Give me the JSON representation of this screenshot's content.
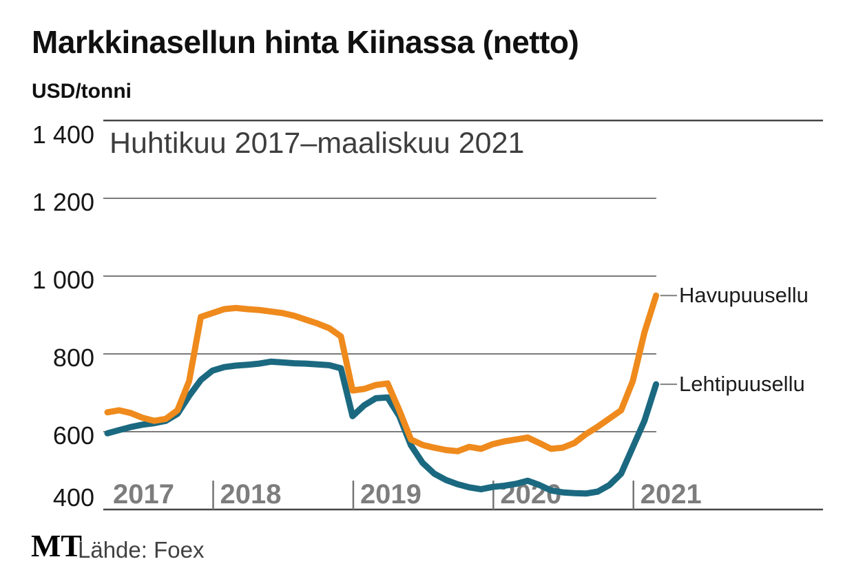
{
  "page": {
    "title": "Markkinasellun hinta Kiinassa (netto)",
    "unit_label": "USD/tonni",
    "period_label": "Huhtikuu 2017–maaliskuu 2021",
    "source_logo": "MT",
    "source_text": "Lähde: Foex"
  },
  "colors": {
    "softwood_line": "#EF8A1D",
    "hardwood_line": "#1B6980",
    "gridline": "#7A7A7A",
    "frame_line": "#454545",
    "year_label": "#7D7D7D",
    "legend_connector": "#7F7F7F"
  },
  "chart_data": {
    "type": "line",
    "title": "Markkinasellun hinta Kiinassa (netto)",
    "subtitle": "Huhtikuu 2017–maaliskuu 2021",
    "ylabel": "USD/tonni",
    "grid": "horizontal",
    "legend_position": "right-of-line-end",
    "x_start": "2017-04",
    "x_end": "2021-03",
    "months": 48,
    "y_axis": {
      "min": 400,
      "max": 1400,
      "ticks": [
        {
          "value": 1400,
          "label": "1 400"
        },
        {
          "value": 1200,
          "label": "1 200"
        },
        {
          "value": 1000,
          "label": "1 000"
        },
        {
          "value": 800,
          "label": "800"
        },
        {
          "value": 600,
          "label": "600"
        },
        {
          "value": 400,
          "label": "400"
        }
      ]
    },
    "x_axis": {
      "year_ticks": [
        {
          "label": "2017",
          "month_index": 0,
          "tick_mark": false
        },
        {
          "label": "2018",
          "month_index": 9,
          "tick_mark": true
        },
        {
          "label": "2019",
          "month_index": 21,
          "tick_mark": true
        },
        {
          "label": "2020",
          "month_index": 33,
          "tick_mark": true
        },
        {
          "label": "2021",
          "month_index": 45,
          "tick_mark": true
        }
      ]
    },
    "series": [
      {
        "name": "Havupuusellu",
        "color": "#EF8A1D",
        "values": [
          650,
          655,
          648,
          636,
          628,
          633,
          655,
          730,
          895,
          905,
          915,
          918,
          915,
          913,
          909,
          905,
          898,
          888,
          878,
          866,
          845,
          706,
          710,
          720,
          724,
          655,
          580,
          566,
          559,
          553,
          550,
          561,
          556,
          568,
          575,
          580,
          585,
          571,
          556,
          559,
          571,
          594,
          613,
          634,
          655,
          730,
          855,
          950
        ]
      },
      {
        "name": "Lehtipuusellu",
        "color": "#1B6980",
        "values": [
          596,
          604,
          612,
          618,
          622,
          628,
          646,
          692,
          733,
          757,
          766,
          770,
          772,
          775,
          780,
          778,
          776,
          775,
          773,
          771,
          763,
          640,
          668,
          686,
          688,
          640,
          565,
          520,
          492,
          476,
          465,
          457,
          452,
          458,
          461,
          466,
          474,
          463,
          449,
          444,
          442,
          441,
          446,
          463,
          492,
          560,
          628,
          722
        ]
      }
    ]
  }
}
